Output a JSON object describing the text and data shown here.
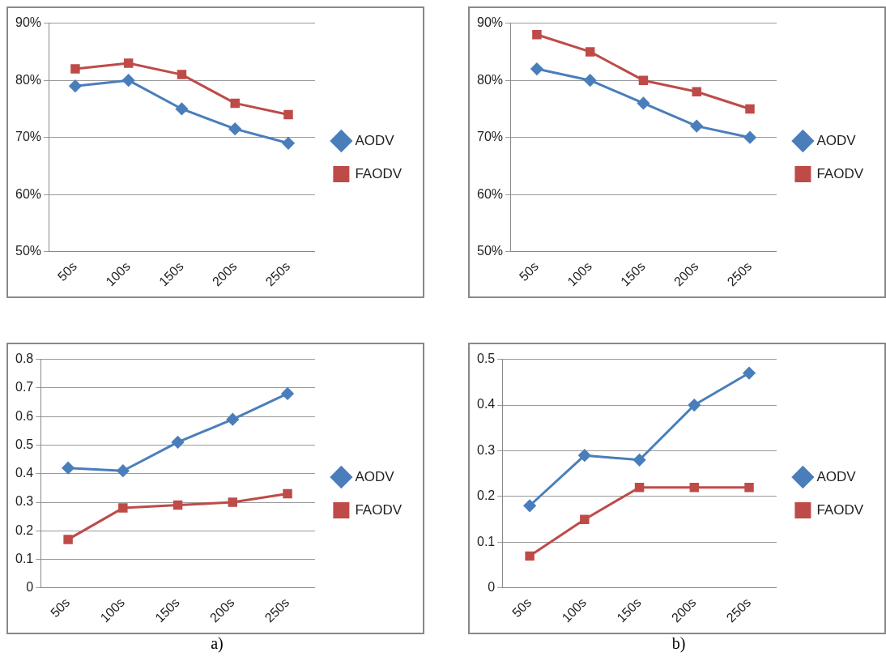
{
  "chart_data": [
    {
      "type": "line",
      "categories": [
        "50s",
        "100s",
        "150s",
        "200s",
        "250s"
      ],
      "ylim": [
        50,
        90
      ],
      "yticks": [
        {
          "value": 50,
          "label": "50%"
        },
        {
          "value": 60,
          "label": "60%"
        },
        {
          "value": 70,
          "label": "70%"
        },
        {
          "value": 80,
          "label": "80%"
        },
        {
          "value": 90,
          "label": "90%"
        }
      ],
      "grid": "y",
      "legend": "right",
      "line_style": "solid",
      "series": [
        {
          "name": "AODV",
          "color": "#4a7ebb",
          "marker": "diamond",
          "values": [
            79,
            80,
            75,
            71.5,
            69
          ]
        },
        {
          "name": "FAODV",
          "color": "#be4b48",
          "marker": "square",
          "values": [
            82,
            83,
            81,
            76,
            74
          ]
        }
      ]
    },
    {
      "type": "line",
      "categories": [
        "50s",
        "100s",
        "150s",
        "200s",
        "250s"
      ],
      "ylim": [
        50,
        90
      ],
      "yticks": [
        {
          "value": 50,
          "label": "50%"
        },
        {
          "value": 60,
          "label": "60%"
        },
        {
          "value": 70,
          "label": "70%"
        },
        {
          "value": 80,
          "label": "80%"
        },
        {
          "value": 90,
          "label": "90%"
        }
      ],
      "grid": "y",
      "legend": "right",
      "line_style": "solid",
      "series": [
        {
          "name": "AODV",
          "color": "#4a7ebb",
          "marker": "diamond",
          "values": [
            82,
            80,
            76,
            72,
            70
          ]
        },
        {
          "name": "FAODV",
          "color": "#be4b48",
          "marker": "square",
          "values": [
            88,
            85,
            80,
            78,
            75
          ]
        }
      ]
    },
    {
      "type": "line",
      "categories": [
        "50s",
        "100s",
        "150s",
        "200s",
        "250s"
      ],
      "ylim": [
        0,
        0.8
      ],
      "yticks": [
        0,
        0.1,
        0.2,
        0.3,
        0.4,
        0.5,
        0.6,
        0.7,
        0.8
      ],
      "grid": "y",
      "legend": "right",
      "line_style": "solid",
      "annotations": [
        "a)"
      ],
      "series": [
        {
          "name": "AODV",
          "color": "#4a7ebb",
          "marker": "diamond",
          "values": [
            0.42,
            0.41,
            0.51,
            0.59,
            0.68
          ]
        },
        {
          "name": "FAODV",
          "color": "#be4b48",
          "marker": "square",
          "values": [
            0.17,
            0.28,
            0.29,
            0.3,
            0.33
          ]
        }
      ]
    },
    {
      "type": "line",
      "categories": [
        "50s",
        "100s",
        "150s",
        "200s",
        "250s"
      ],
      "ylim": [
        0,
        0.5
      ],
      "yticks": [
        0,
        0.1,
        0.2,
        0.3,
        0.4,
        0.5
      ],
      "grid": "y",
      "legend": "right",
      "line_style": "solid",
      "annotations": [
        "b)"
      ],
      "series": [
        {
          "name": "AODV",
          "color": "#4a7ebb",
          "marker": "diamond",
          "values": [
            0.18,
            0.29,
            0.28,
            0.4,
            0.47
          ]
        },
        {
          "name": "FAODV",
          "color": "#be4b48",
          "marker": "square",
          "values": [
            0.07,
            0.15,
            0.22,
            0.22,
            0.22
          ]
        }
      ]
    }
  ]
}
